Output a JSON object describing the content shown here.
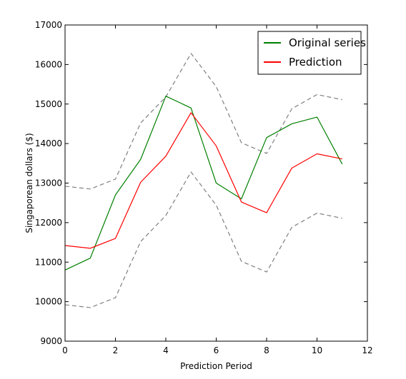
{
  "chart_data": {
    "type": "line",
    "title": "",
    "xlabel": "Prediction Period",
    "ylabel": "Singaporean dollars ($)",
    "xlim": [
      0,
      12
    ],
    "ylim": [
      9000,
      17000
    ],
    "xticks": [
      0,
      2,
      4,
      6,
      8,
      10,
      12
    ],
    "yticks": [
      9000,
      10000,
      11000,
      12000,
      13000,
      14000,
      15000,
      16000,
      17000
    ],
    "grid": false,
    "legend_position": "top-right",
    "x": [
      0,
      1,
      2,
      3,
      4,
      5,
      6,
      7,
      8,
      9,
      10,
      11
    ],
    "series": [
      {
        "name": "Original series",
        "color": "#007f00",
        "style": "solid",
        "in_legend": true,
        "values": [
          10800,
          11100,
          12700,
          13600,
          15200,
          14900,
          13000,
          12600,
          14150,
          14500,
          14670,
          13480
        ]
      },
      {
        "name": "Prediction",
        "color": "#ff0000",
        "style": "solid",
        "in_legend": true,
        "values": [
          11420,
          11350,
          11600,
          13020,
          13680,
          14780,
          13940,
          12520,
          12250,
          13380,
          13740,
          13610
        ]
      },
      {
        "color": "#808080",
        "style": "dashed",
        "in_legend": false,
        "values": [
          12920,
          12850,
          13100,
          14520,
          15180,
          16280,
          15440,
          14020,
          13750,
          14880,
          15240,
          15110
        ]
      },
      {
        "color": "#808080",
        "style": "dashed",
        "in_legend": false,
        "values": [
          9920,
          9850,
          10100,
          11520,
          12180,
          13280,
          12440,
          11020,
          10750,
          11880,
          12240,
          12110
        ]
      }
    ]
  }
}
